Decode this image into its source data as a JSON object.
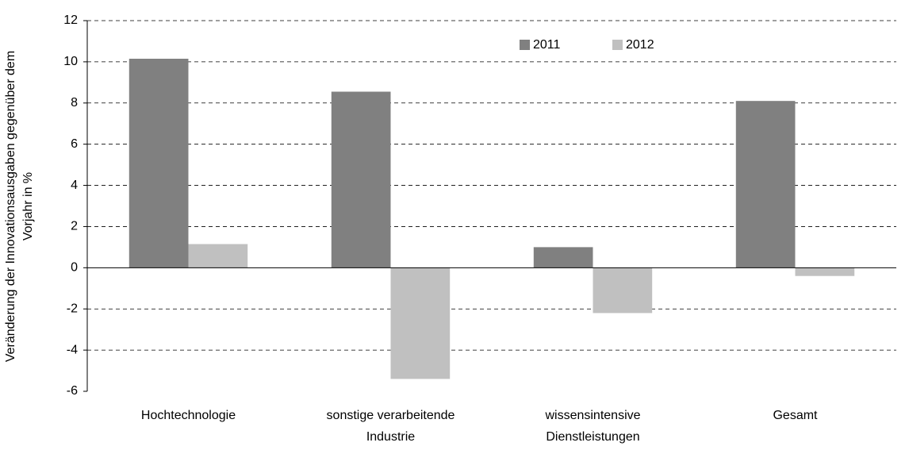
{
  "chart_data": {
    "type": "bar",
    "ylabel": [
      "Veränderung der Innovationsausgaben gegenüber dem",
      "Vorjahr in %"
    ],
    "categories": [
      [
        "Hochtechnologie"
      ],
      [
        "sonstige verarbeitende",
        "Industrie"
      ],
      [
        "wissensintensive",
        "Dienstleistungen"
      ],
      [
        "Gesamt"
      ]
    ],
    "series": [
      {
        "name": "2011",
        "color": "#808080",
        "values": [
          10.15,
          8.55,
          1.0,
          8.1
        ]
      },
      {
        "name": "2012",
        "color": "#c0c0c0",
        "values": [
          1.15,
          -5.4,
          -2.2,
          -0.4
        ]
      }
    ],
    "ylim": [
      -6,
      12
    ],
    "yticks": [
      -6,
      -4,
      -2,
      0,
      2,
      4,
      6,
      8,
      10,
      12
    ],
    "grid": true,
    "legend": "top-right"
  }
}
